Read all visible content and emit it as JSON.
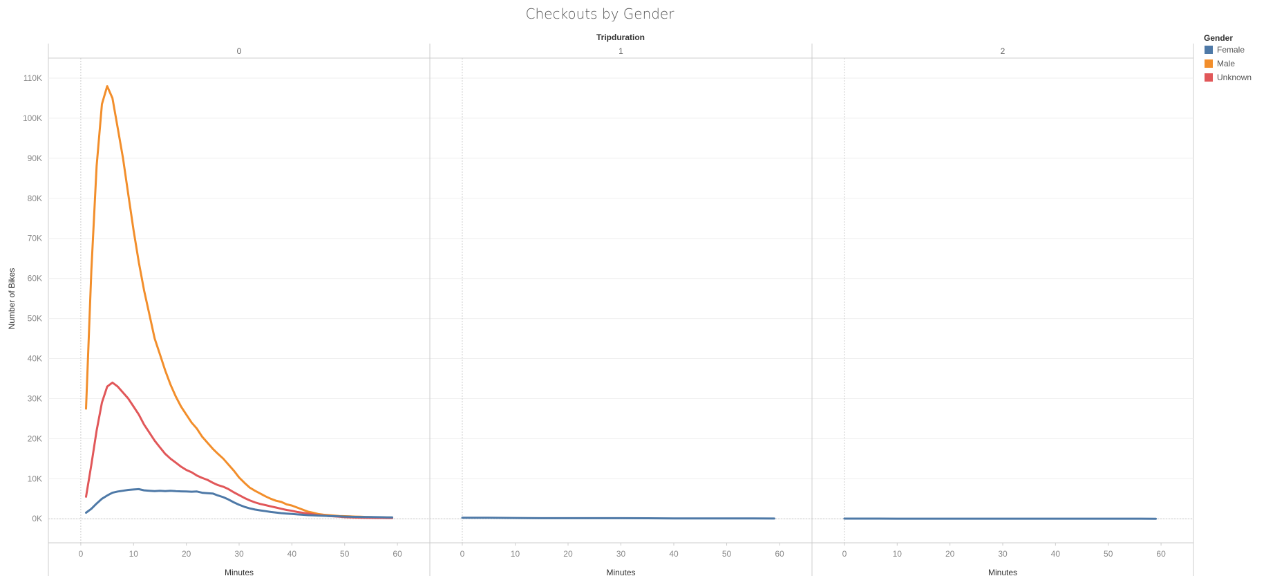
{
  "chart_data": {
    "type": "line",
    "title": "Checkouts by Gender",
    "column_header": "Tripduration",
    "xlabel": "Minutes",
    "ylabel": "Number of Bikes",
    "y_tick_labels": [
      "0K",
      "10K",
      "20K",
      "30K",
      "40K",
      "50K",
      "60K",
      "70K",
      "80K",
      "90K",
      "100K",
      "110K"
    ],
    "y_ticks": [
      0,
      10000,
      20000,
      30000,
      40000,
      50000,
      60000,
      70000,
      80000,
      90000,
      100000,
      110000
    ],
    "ylim": [
      -6000,
      115000
    ],
    "xlim": [
      -3,
      63
    ],
    "x_ticks": [
      0,
      10,
      20,
      30,
      40,
      50,
      60
    ],
    "x_tick_labels": [
      "0",
      "10",
      "20",
      "30",
      "40",
      "50",
      "60"
    ],
    "legend": {
      "title": "Gender",
      "position": "top-right",
      "entries": [
        {
          "name": "Female",
          "color": "#4e79a7"
        },
        {
          "name": "Male",
          "color": "#f28e2b"
        },
        {
          "name": "Unknown",
          "color": "#e15759"
        }
      ]
    },
    "panels": [
      {
        "label": "0",
        "series": [
          {
            "name": "Male",
            "color": "#f28e2b",
            "x": [
              1,
              2,
              3,
              4,
              5,
              6,
              7,
              8,
              9,
              10,
              11,
              12,
              13,
              14,
              15,
              16,
              17,
              18,
              19,
              20,
              21,
              22,
              23,
              24,
              25,
              26,
              27,
              28,
              29,
              30,
              31,
              32,
              33,
              34,
              35,
              36,
              37,
              38,
              39,
              40,
              41,
              42,
              43,
              44,
              45,
              46,
              47,
              48,
              49,
              50,
              51,
              52,
              53,
              54,
              55,
              56,
              57,
              58,
              59
            ],
            "y": [
              27500,
              62000,
              88000,
              103500,
              108000,
              105000,
              97500,
              90000,
              81000,
              72000,
              64000,
              57000,
              51000,
              45000,
              41000,
              37000,
              33500,
              30500,
              28000,
              26000,
              24000,
              22500,
              20500,
              19000,
              17500,
              16200,
              15000,
              13500,
              12000,
              10300,
              9000,
              7800,
              7000,
              6300,
              5600,
              5000,
              4500,
              4200,
              3600,
              3300,
              2800,
              2300,
              1800,
              1500,
              1200,
              1000,
              900,
              800,
              700,
              650,
              600,
              550,
              500,
              450,
              400,
              370,
              340,
              320,
              300
            ]
          },
          {
            "name": "Unknown",
            "color": "#e15759",
            "x": [
              1,
              2,
              3,
              4,
              5,
              6,
              7,
              8,
              9,
              10,
              11,
              12,
              13,
              14,
              15,
              16,
              17,
              18,
              19,
              20,
              21,
              22,
              23,
              24,
              25,
              26,
              27,
              28,
              29,
              30,
              31,
              32,
              33,
              34,
              35,
              36,
              37,
              38,
              39,
              40,
              41,
              42,
              43,
              44,
              45,
              46,
              47,
              48,
              49,
              50,
              51,
              52,
              53,
              54,
              55,
              56,
              57,
              58,
              59
            ],
            "y": [
              5500,
              13500,
              22000,
              29000,
              33000,
              34000,
              33000,
              31500,
              30000,
              28000,
              26000,
              23500,
              21500,
              19500,
              17800,
              16200,
              15000,
              14000,
              13000,
              12200,
              11600,
              10800,
              10200,
              9700,
              9000,
              8400,
              8000,
              7400,
              6600,
              5900,
              5200,
              4600,
              4100,
              3700,
              3400,
              3100,
              2800,
              2500,
              2200,
              2000,
              1700,
              1500,
              1300,
              1100,
              900,
              800,
              700,
              600,
              500,
              400,
              350,
              300,
              250,
              230,
              210,
              200,
              190,
              180,
              170
            ]
          },
          {
            "name": "Female",
            "color": "#4e79a7",
            "x": [
              1,
              2,
              3,
              4,
              5,
              6,
              7,
              8,
              9,
              10,
              11,
              12,
              13,
              14,
              15,
              16,
              17,
              18,
              19,
              20,
              21,
              22,
              23,
              24,
              25,
              26,
              27,
              28,
              29,
              30,
              31,
              32,
              33,
              34,
              35,
              36,
              37,
              38,
              39,
              40,
              41,
              42,
              43,
              44,
              45,
              46,
              47,
              48,
              49,
              50,
              51,
              52,
              53,
              54,
              55,
              56,
              57,
              58,
              59
            ],
            "y": [
              1500,
              2500,
              3800,
              5000,
              5800,
              6500,
              6800,
              7000,
              7200,
              7300,
              7400,
              7100,
              7000,
              6900,
              7000,
              6900,
              7000,
              6900,
              6850,
              6800,
              6750,
              6800,
              6500,
              6400,
              6300,
              5800,
              5400,
              4800,
              4100,
              3500,
              3000,
              2600,
              2300,
              2100,
              1900,
              1700,
              1550,
              1400,
              1300,
              1200,
              1100,
              1000,
              900,
              850,
              800,
              750,
              700,
              650,
              600,
              550,
              500,
              480,
              460,
              440,
              420,
              400,
              380,
              360,
              340
            ]
          }
        ]
      },
      {
        "label": "1",
        "series": [
          {
            "name": "Female",
            "color": "#4e79a7",
            "x": [
              0,
              5,
              10,
              15,
              20,
              25,
              30,
              35,
              40,
              45,
              50,
              55,
              59
            ],
            "y": [
              250,
              250,
              200,
              150,
              150,
              150,
              150,
              120,
              100,
              90,
              80,
              70,
              60
            ]
          }
        ]
      },
      {
        "label": "2",
        "series": [
          {
            "name": "Female",
            "color": "#4e79a7",
            "x": [
              0,
              5,
              10,
              15,
              20,
              25,
              30,
              35,
              40,
              45,
              50,
              55,
              59
            ],
            "y": [
              40,
              40,
              30,
              30,
              30,
              30,
              30,
              20,
              20,
              20,
              20,
              20,
              10
            ]
          }
        ]
      }
    ]
  }
}
